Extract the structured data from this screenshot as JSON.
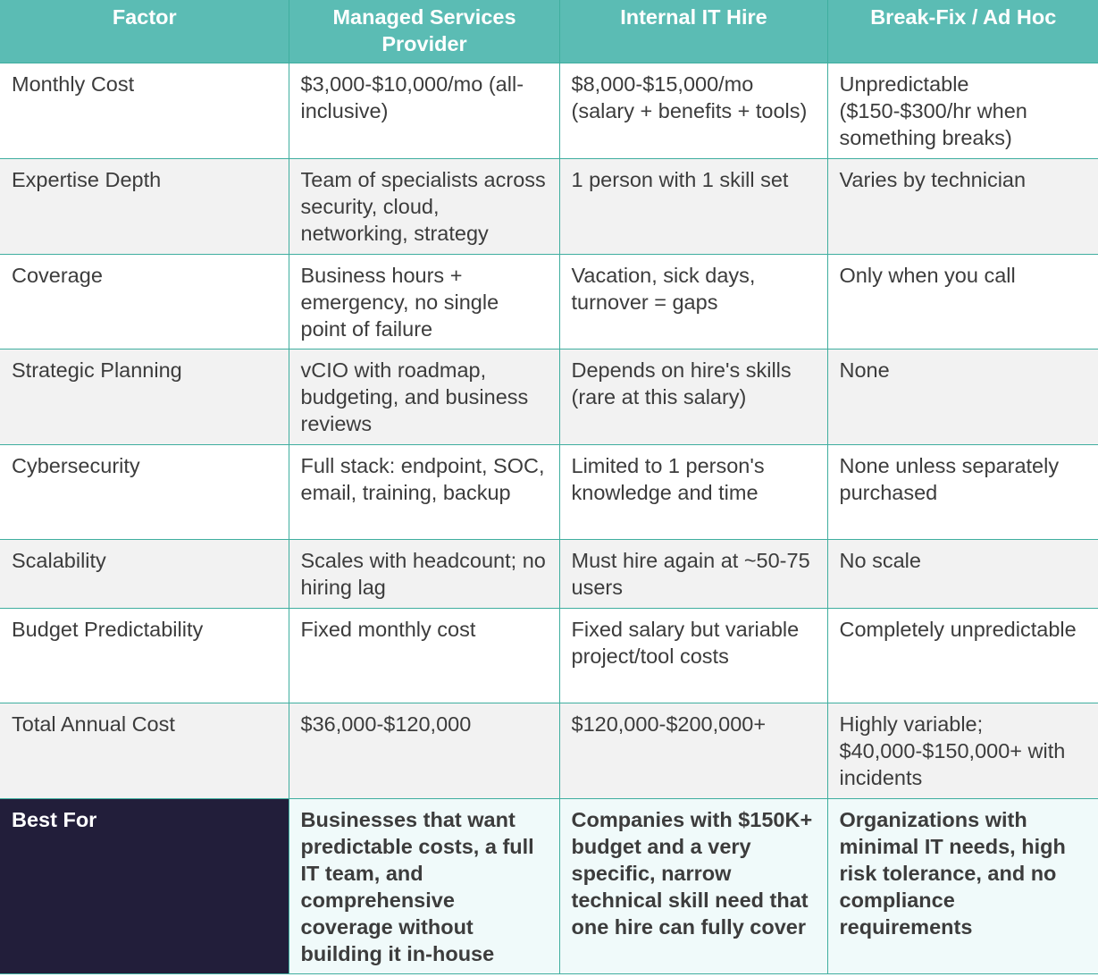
{
  "table": {
    "headers": [
      "Factor",
      "Managed Services Provider",
      "Internal IT Hire",
      "Break-Fix / Ad Hoc"
    ],
    "rows": [
      {
        "factor": "Monthly Cost",
        "msp": "$3,000-$10,000/mo (all-inclusive)",
        "internal": "$8,000-$15,000/mo (salary + benefits + tools)",
        "breakfix": "Unpredictable ($150-$300/hr when something breaks)"
      },
      {
        "factor": "Expertise Depth",
        "msp": "Team of specialists across security, cloud, networking, strategy",
        "internal": "1 person with 1 skill set",
        "breakfix": "Varies by technician"
      },
      {
        "factor": "Coverage",
        "msp": "Business hours + emergency, no single point of failure",
        "internal": "Vacation, sick days, turnover = gaps",
        "breakfix": "Only when you call"
      },
      {
        "factor": "Strategic Planning",
        "msp": "vCIO with roadmap, budgeting, and business reviews",
        "internal": "Depends on hire's skills (rare at this salary)",
        "breakfix": "None"
      },
      {
        "factor": "Cybersecurity",
        "msp": "Full stack: endpoint, SOC, email, training, backup",
        "internal": "Limited to 1 person's knowledge and time",
        "breakfix": "None unless separately purchased"
      },
      {
        "factor": "Scalability",
        "msp": "Scales with headcount; no hiring lag",
        "internal": "Must hire again at ~50-75 users",
        "breakfix": "No scale"
      },
      {
        "factor": "Budget Predictability",
        "msp": "Fixed monthly cost",
        "internal": "Fixed salary but variable project/tool costs",
        "breakfix": "Completely unpredictable"
      },
      {
        "factor": "Total Annual Cost",
        "msp": "$36,000-$120,000",
        "internal": "$120,000-$200,000+",
        "breakfix": "Highly variable; $40,000-$150,000+ with incidents"
      },
      {
        "factor": "Best For",
        "msp": "Businesses that want predictable costs, a full IT team, and comprehensive coverage without building it in-house",
        "internal": "Companies with $150K+ budget and a very specific, narrow technical skill need that one hire can fully cover",
        "breakfix": "Organizations with minimal IT needs, high risk tolerance, and no compliance requirements"
      }
    ]
  },
  "colors": {
    "header": "#5bbcb4",
    "border": "#3fae9f",
    "best_for_label": "#221e3a",
    "best_for_cells": "#f0fafa",
    "stripe": "#f2f2f2"
  }
}
